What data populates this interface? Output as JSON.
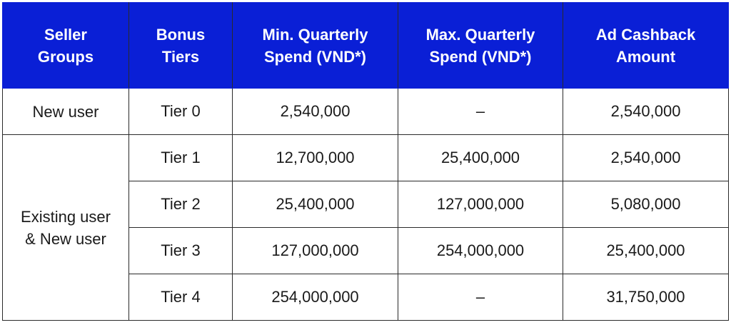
{
  "headers": [
    {
      "line1": "Seller",
      "line2": "Groups"
    },
    {
      "line1": "Bonus",
      "line2": "Tiers"
    },
    {
      "line1": "Min. Quarterly",
      "line2": "Spend (VND*)"
    },
    {
      "line1": "Max. Quarterly",
      "line2": "Spend (VND*)"
    },
    {
      "line1": "Ad Cashback",
      "line2": "Amount"
    }
  ],
  "groups": [
    {
      "line1": "New user",
      "line2": ""
    },
    {
      "line1": "Existing user",
      "line2": "& New user"
    }
  ],
  "rows": [
    {
      "tier": "Tier 0",
      "min": "2,540,000",
      "max": "–",
      "cashback": "2,540,000"
    },
    {
      "tier": "Tier 1",
      "min": "12,700,000",
      "max": "25,400,000",
      "cashback": "2,540,000"
    },
    {
      "tier": "Tier 2",
      "min": "25,400,000",
      "max": "127,000,000",
      "cashback": "5,080,000"
    },
    {
      "tier": "Tier 3",
      "min": "127,000,000",
      "max": "254,000,000",
      "cashback": "25,400,000"
    },
    {
      "tier": "Tier 4",
      "min": "254,000,000",
      "max": "–",
      "cashback": "31,750,000"
    }
  ],
  "colors": {
    "header_bg": "#0a1fd6",
    "header_text": "#ffffff",
    "border": "#2a2a2a"
  }
}
